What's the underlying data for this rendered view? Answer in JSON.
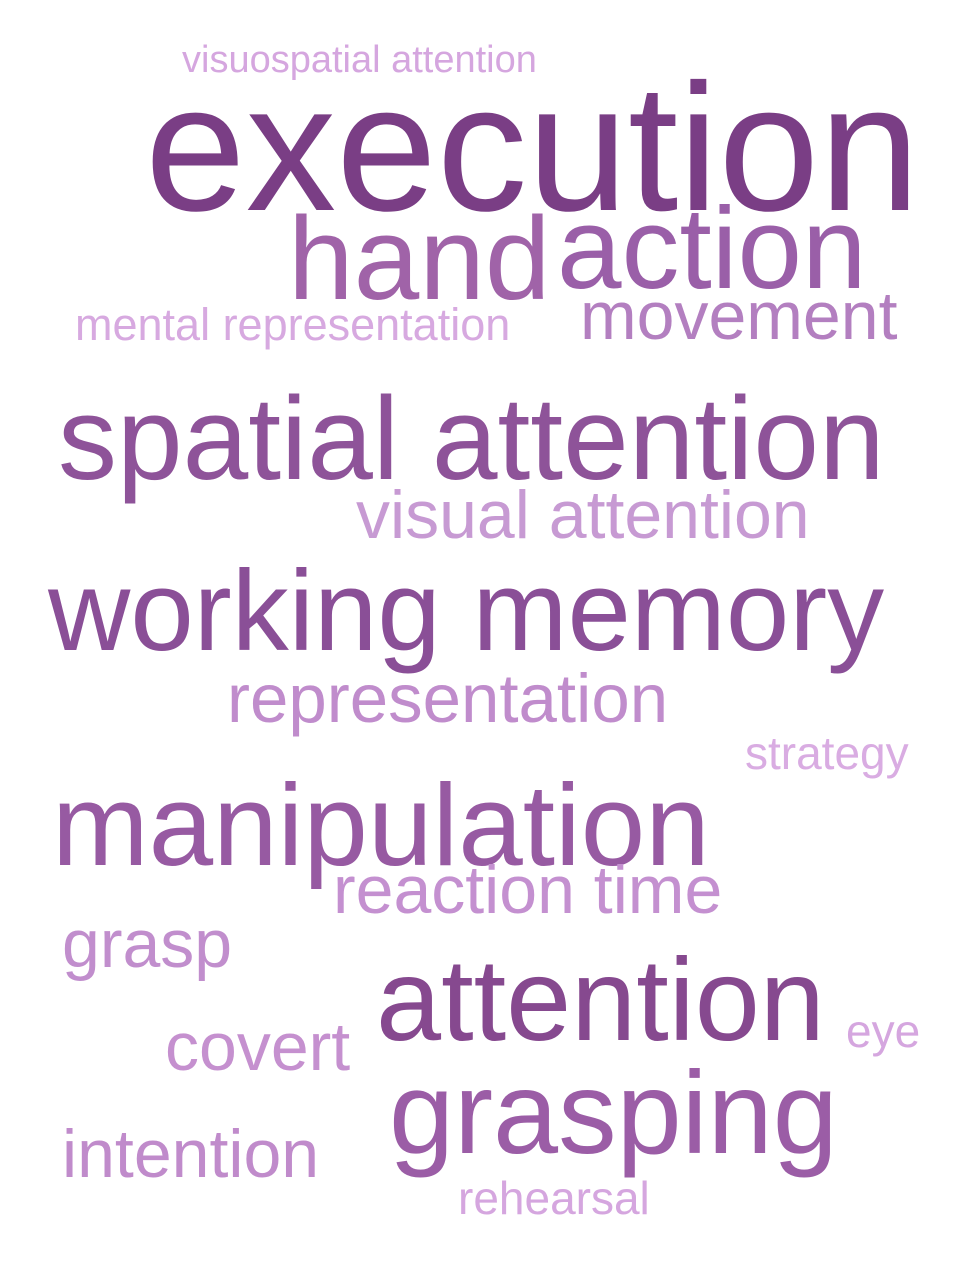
{
  "words": [
    {
      "text": "visuospatial attention",
      "color": "#d5a6df"
    },
    {
      "text": "execution",
      "color": "#7a3e85"
    },
    {
      "text": "hand",
      "color": "#a063a8"
    },
    {
      "text": "action",
      "color": "#9a5fa8"
    },
    {
      "text": "mental representation",
      "color": "#d7a9e0"
    },
    {
      "text": "movement",
      "color": "#b37fc0"
    },
    {
      "text": "spatial attention",
      "color": "#8e5399"
    },
    {
      "text": "visual attention",
      "color": "#c79ad3"
    },
    {
      "text": "working memory",
      "color": "#8a4f97"
    },
    {
      "text": "representation",
      "color": "#c08ccc"
    },
    {
      "text": "strategy",
      "color": "#d9ace2"
    },
    {
      "text": "manipulation",
      "color": "#975aa2"
    },
    {
      "text": "reaction time",
      "color": "#c490d0"
    },
    {
      "text": "grasp",
      "color": "#c18ecd"
    },
    {
      "text": "attention",
      "color": "#86498f"
    },
    {
      "text": "eye",
      "color": "#d5a6df"
    },
    {
      "text": "covert",
      "color": "#c590cf"
    },
    {
      "text": "grasping",
      "color": "#9b5da6"
    },
    {
      "text": "intention",
      "color": "#c08bcb"
    },
    {
      "text": "rehearsal",
      "color": "#d5a6df"
    }
  ]
}
